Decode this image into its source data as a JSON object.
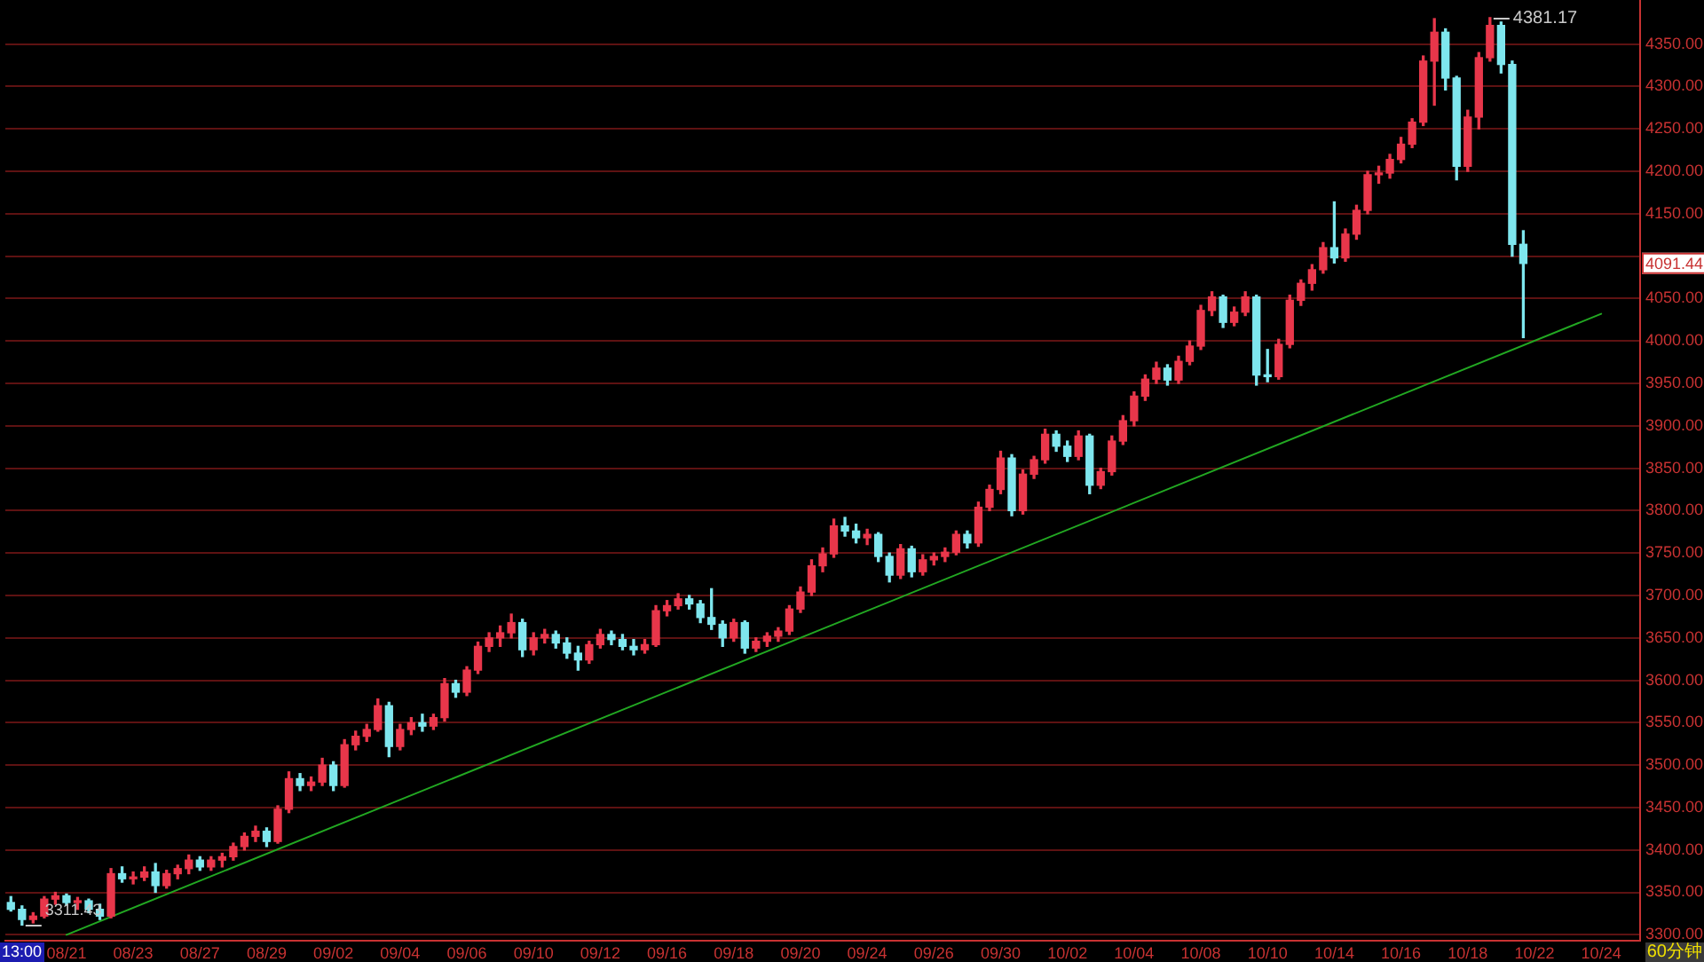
{
  "chart_data": {
    "type": "candlestick",
    "categories": [
      null,
      null,
      null,
      null,
      null,
      "08/21",
      null,
      null,
      null,
      null,
      null,
      "08/23",
      null,
      null,
      null,
      null,
      null,
      "08/27",
      null,
      null,
      null,
      null,
      null,
      "08/29",
      null,
      null,
      null,
      null,
      null,
      "09/02",
      null,
      null,
      null,
      null,
      null,
      "09/04",
      null,
      null,
      null,
      null,
      null,
      "09/06",
      null,
      null,
      null,
      null,
      null,
      "09/10",
      null,
      null,
      null,
      null,
      null,
      "09/12",
      null,
      null,
      null,
      null,
      null,
      "09/16",
      null,
      null,
      null,
      null,
      null,
      "09/18",
      null,
      null,
      null,
      null,
      null,
      "09/20",
      null,
      null,
      null,
      null,
      null,
      "09/24",
      null,
      null,
      null,
      null,
      null,
      "09/26",
      null,
      null,
      null,
      null,
      null,
      "09/30",
      null,
      null,
      null,
      null,
      null,
      "10/02",
      null,
      null,
      null,
      null,
      null,
      "10/04",
      null,
      null,
      null,
      null,
      null,
      "10/08",
      null,
      null,
      null,
      null,
      null,
      "10/10",
      null,
      null,
      null,
      null,
      null,
      "10/14",
      null,
      null,
      null,
      null,
      null,
      "10/16",
      null,
      null,
      null,
      null,
      null,
      "10/18",
      null,
      null,
      null,
      null,
      null,
      "10/22",
      null,
      null,
      null,
      null,
      null,
      "10/24",
      null,
      null,
      null
    ],
    "ohlc": [
      [
        3338,
        3345,
        3328,
        3330
      ],
      [
        3330,
        3334,
        3311.43,
        3318
      ],
      [
        3318,
        3326,
        3314,
        3322
      ],
      [
        3322,
        3345,
        3320,
        3342
      ],
      [
        3342,
        3350,
        3336,
        3346
      ],
      [
        3346,
        3348,
        3335,
        3338
      ],
      [
        3338,
        3344,
        3330,
        3340
      ],
      [
        3340,
        3342,
        3326,
        3330
      ],
      [
        3330,
        3336,
        3318,
        3322
      ],
      [
        3322,
        3378,
        3320,
        3372
      ],
      [
        3372,
        3380,
        3362,
        3366
      ],
      [
        3366,
        3374,
        3360,
        3368
      ],
      [
        3368,
        3380,
        3364,
        3374
      ],
      [
        3374,
        3384,
        3350,
        3358
      ],
      [
        3358,
        3376,
        3355,
        3372
      ],
      [
        3372,
        3382,
        3366,
        3378
      ],
      [
        3378,
        3394,
        3372,
        3388
      ],
      [
        3388,
        3392,
        3376,
        3380
      ],
      [
        3380,
        3392,
        3376,
        3388
      ],
      [
        3388,
        3396,
        3380,
        3392
      ],
      [
        3392,
        3408,
        3388,
        3404
      ],
      [
        3404,
        3420,
        3400,
        3416
      ],
      [
        3416,
        3428,
        3410,
        3422
      ],
      [
        3422,
        3426,
        3404,
        3410
      ],
      [
        3410,
        3452,
        3408,
        3448
      ],
      [
        3448,
        3492,
        3444,
        3484
      ],
      [
        3484,
        3490,
        3470,
        3476
      ],
      [
        3476,
        3486,
        3470,
        3480
      ],
      [
        3480,
        3508,
        3476,
        3500
      ],
      [
        3500,
        3504,
        3470,
        3476
      ],
      [
        3476,
        3530,
        3474,
        3524
      ],
      [
        3524,
        3540,
        3518,
        3534
      ],
      [
        3534,
        3548,
        3528,
        3542
      ],
      [
        3542,
        3578,
        3540,
        3570
      ],
      [
        3570,
        3574,
        3510,
        3522
      ],
      [
        3522,
        3548,
        3518,
        3542
      ],
      [
        3542,
        3556,
        3536,
        3550
      ],
      [
        3550,
        3560,
        3540,
        3546
      ],
      [
        3546,
        3560,
        3542,
        3556
      ],
      [
        3556,
        3602,
        3552,
        3596
      ],
      [
        3596,
        3600,
        3580,
        3586
      ],
      [
        3586,
        3616,
        3582,
        3612
      ],
      [
        3612,
        3645,
        3608,
        3640
      ],
      [
        3640,
        3656,
        3634,
        3650
      ],
      [
        3650,
        3664,
        3640,
        3656
      ],
      [
        3656,
        3678,
        3650,
        3668
      ],
      [
        3668,
        3672,
        3628,
        3636
      ],
      [
        3636,
        3656,
        3630,
        3650
      ],
      [
        3650,
        3660,
        3644,
        3654
      ],
      [
        3654,
        3658,
        3638,
        3644
      ],
      [
        3644,
        3650,
        3626,
        3632
      ],
      [
        3632,
        3640,
        3612,
        3624
      ],
      [
        3624,
        3646,
        3620,
        3642
      ],
      [
        3642,
        3660,
        3638,
        3654
      ],
      [
        3654,
        3658,
        3642,
        3648
      ],
      [
        3648,
        3654,
        3636,
        3640
      ],
      [
        3640,
        3648,
        3630,
        3636
      ],
      [
        3636,
        3648,
        3632,
        3642
      ],
      [
        3642,
        3688,
        3640,
        3682
      ],
      [
        3682,
        3694,
        3676,
        3688
      ],
      [
        3688,
        3702,
        3684,
        3696
      ],
      [
        3696,
        3700,
        3684,
        3690
      ],
      [
        3690,
        3694,
        3668,
        3674
      ],
      [
        3674,
        3708,
        3660,
        3666
      ],
      [
        3666,
        3670,
        3640,
        3650
      ],
      [
        3650,
        3672,
        3646,
        3668
      ],
      [
        3668,
        3670,
        3632,
        3638
      ],
      [
        3638,
        3650,
        3634,
        3646
      ],
      [
        3646,
        3656,
        3640,
        3652
      ],
      [
        3652,
        3662,
        3646,
        3658
      ],
      [
        3658,
        3688,
        3654,
        3684
      ],
      [
        3684,
        3710,
        3680,
        3704
      ],
      [
        3704,
        3742,
        3700,
        3735
      ],
      [
        3735,
        3756,
        3728,
        3749
      ],
      [
        3749,
        3790,
        3745,
        3782
      ],
      [
        3782,
        3792,
        3770,
        3776
      ],
      [
        3776,
        3784,
        3762,
        3768
      ],
      [
        3768,
        3778,
        3760,
        3772
      ],
      [
        3772,
        3774,
        3740,
        3746
      ],
      [
        3746,
        3750,
        3716,
        3724
      ],
      [
        3724,
        3760,
        3720,
        3755
      ],
      [
        3755,
        3758,
        3722,
        3728
      ],
      [
        3728,
        3748,
        3724,
        3742
      ],
      [
        3742,
        3750,
        3736,
        3746
      ],
      [
        3746,
        3756,
        3740,
        3751
      ],
      [
        3751,
        3776,
        3748,
        3772
      ],
      [
        3772,
        3776,
        3756,
        3762
      ],
      [
        3762,
        3810,
        3758,
        3804
      ],
      [
        3804,
        3830,
        3800,
        3825
      ],
      [
        3825,
        3870,
        3820,
        3862
      ],
      [
        3862,
        3866,
        3794,
        3800
      ],
      [
        3800,
        3848,
        3796,
        3843
      ],
      [
        3843,
        3864,
        3838,
        3860
      ],
      [
        3860,
        3896,
        3856,
        3890
      ],
      [
        3890,
        3894,
        3870,
        3876
      ],
      [
        3876,
        3882,
        3858,
        3864
      ],
      [
        3864,
        3894,
        3860,
        3888
      ],
      [
        3888,
        3890,
        3820,
        3830
      ],
      [
        3830,
        3850,
        3826,
        3846
      ],
      [
        3846,
        3888,
        3842,
        3882
      ],
      [
        3882,
        3912,
        3878,
        3906
      ],
      [
        3906,
        3940,
        3900,
        3935
      ],
      [
        3935,
        3960,
        3930,
        3955
      ],
      [
        3955,
        3975,
        3950,
        3968
      ],
      [
        3968,
        3972,
        3948,
        3954
      ],
      [
        3954,
        3982,
        3950,
        3976
      ],
      [
        3976,
        4000,
        3972,
        3994
      ],
      [
        3994,
        4042,
        3990,
        4036
      ],
      [
        4036,
        4058,
        4030,
        4052
      ],
      [
        4052,
        4054,
        4016,
        4022
      ],
      [
        4022,
        4040,
        4018,
        4034
      ],
      [
        4034,
        4058,
        4030,
        4052
      ],
      [
        4052,
        4054,
        3948,
        3960
      ],
      [
        3960,
        3990,
        3952,
        3958
      ],
      [
        3958,
        4002,
        3955,
        3996
      ],
      [
        3996,
        4054,
        3992,
        4048
      ],
      [
        4048,
        4072,
        4042,
        4068
      ],
      [
        4068,
        4090,
        4060,
        4084
      ],
      [
        4084,
        4116,
        4080,
        4110
      ],
      [
        4110,
        4164,
        4092,
        4098
      ],
      [
        4098,
        4132,
        4094,
        4126
      ],
      [
        4126,
        4160,
        4120,
        4154
      ],
      [
        4154,
        4200,
        4150,
        4196
      ],
      [
        4196,
        4206,
        4186,
        4198
      ],
      [
        4198,
        4220,
        4192,
        4214
      ],
      [
        4214,
        4240,
        4210,
        4232
      ],
      [
        4232,
        4262,
        4228,
        4258
      ],
      [
        4258,
        4336,
        4254,
        4330
      ],
      [
        4330,
        4380,
        4278,
        4364
      ],
      [
        4364,
        4368,
        4296,
        4310
      ],
      [
        4310,
        4312,
        4190,
        4206
      ],
      [
        4206,
        4272,
        4200,
        4264
      ],
      [
        4264,
        4340,
        4250,
        4334
      ],
      [
        4334,
        4381.17,
        4330,
        4372
      ],
      [
        4372,
        4376,
        4316,
        4326
      ],
      [
        4326,
        4330,
        4100,
        4114
      ],
      [
        4114,
        4130,
        4004,
        4091.44
      ],
      null,
      null,
      null,
      null,
      null,
      null,
      null,
      null,
      null,
      null
    ],
    "colors": [
      "#7ee6ee",
      "#7ee6ee",
      "#e8364a",
      "#e8364a",
      "#e8364a",
      "#7ee6ee",
      "#e8364a",
      "#7ee6ee",
      "#7ee6ee",
      "#e8364a",
      "#7ee6ee",
      "#e8364a",
      "#e8364a",
      "#7ee6ee",
      "#e8364a",
      "#e8364a",
      "#e8364a",
      "#7ee6ee",
      "#e8364a",
      "#e8364a",
      "#e8364a",
      "#e8364a",
      "#e8364a",
      "#7ee6ee",
      "#e8364a",
      "#e8364a",
      "#7ee6ee",
      "#e8364a",
      "#e8364a",
      "#7ee6ee",
      "#e8364a",
      "#e8364a",
      "#e8364a",
      "#e8364a",
      "#7ee6ee",
      "#e8364a",
      "#e8364a",
      "#7ee6ee",
      "#e8364a",
      "#e8364a",
      "#7ee6ee",
      "#e8364a",
      "#e8364a",
      "#e8364a",
      "#e8364a",
      "#e8364a",
      "#7ee6ee",
      "#e8364a",
      "#e8364a",
      "#7ee6ee",
      "#7ee6ee",
      "#7ee6ee",
      "#e8364a",
      "#e8364a",
      "#7ee6ee",
      "#7ee6ee",
      "#7ee6ee",
      "#e8364a",
      "#e8364a",
      "#e8364a",
      "#e8364a",
      "#7ee6ee",
      "#7ee6ee",
      "#7ee6ee",
      "#7ee6ee",
      "#e8364a",
      "#7ee6ee",
      "#e8364a",
      "#e8364a",
      "#e8364a",
      "#e8364a",
      "#e8364a",
      "#e8364a",
      "#e8364a",
      "#e8364a",
      "#7ee6ee",
      "#7ee6ee",
      "#e8364a",
      "#7ee6ee",
      "#7ee6ee",
      "#e8364a",
      "#7ee6ee",
      "#e8364a",
      "#e8364a",
      "#e8364a",
      "#e8364a",
      "#7ee6ee",
      "#e8364a",
      "#e8364a",
      "#e8364a",
      "#7ee6ee",
      "#e8364a",
      "#e8364a",
      "#e8364a",
      "#7ee6ee",
      "#7ee6ee",
      "#e8364a",
      "#7ee6ee",
      "#e8364a",
      "#e8364a",
      "#e8364a",
      "#e8364a",
      "#e8364a",
      "#e8364a",
      "#7ee6ee",
      "#e8364a",
      "#e8364a",
      "#e8364a",
      "#e8364a",
      "#7ee6ee",
      "#e8364a",
      "#e8364a",
      "#7ee6ee",
      "#7ee6ee",
      "#e8364a",
      "#e8364a",
      "#e8364a",
      "#e8364a",
      "#e8364a",
      "#7ee6ee",
      "#e8364a",
      "#e8364a",
      "#e8364a",
      "#e8364a",
      "#e8364a",
      "#e8364a",
      "#e8364a",
      "#e8364a",
      "#e8364a",
      "#7ee6ee",
      "#7ee6ee",
      "#e8364a",
      "#e8364a",
      "#e8364a",
      "#7ee6ee",
      "#7ee6ee",
      "#7ee6ee",
      null,
      null,
      null,
      null,
      null,
      null,
      null,
      null,
      null,
      null
    ],
    "series": [
      {
        "type": "line",
        "x": [
          "08/21",
          "10/24"
        ],
        "values": [
          3300,
          4032
        ],
        "color": "#22a822"
      }
    ],
    "ylim": [
      3293,
      4402
    ],
    "yticks": [
      {
        "value": 3300,
        "label": "3300.00"
      },
      {
        "value": 3350,
        "label": "3350.00"
      },
      {
        "value": 3400,
        "label": "3400.00"
      },
      {
        "value": 3450,
        "label": "3450.00"
      },
      {
        "value": 3500,
        "label": "3500.00"
      },
      {
        "value": 3550,
        "label": "3550.00"
      },
      {
        "value": 3600,
        "label": "3600.00"
      },
      {
        "value": 3650,
        "label": "3650.00"
      },
      {
        "value": 3700,
        "label": "3700.00"
      },
      {
        "value": 3750,
        "label": "3750.00"
      },
      {
        "value": 3800,
        "label": "3800.00"
      },
      {
        "value": 3850,
        "label": "3850.00"
      },
      {
        "value": 3900,
        "label": "3900.00"
      },
      {
        "value": 3950,
        "label": "3950.00"
      },
      {
        "value": 4000,
        "label": "4000.00"
      },
      {
        "value": 4050,
        "label": "4050.00"
      },
      {
        "value": 4100,
        "label": null
      },
      {
        "value": 4150,
        "label": "4150.00"
      },
      {
        "value": 4200,
        "label": "4200.00"
      },
      {
        "value": 4250,
        "label": "4250.00"
      },
      {
        "value": 4300,
        "label": "4300.00"
      },
      {
        "value": 4350,
        "label": "4350.00"
      }
    ],
    "grid": "y",
    "annotations": [
      "4381.17",
      "3311.43",
      {
        "text": "4091.44",
        "y": 4091.44
      },
      "13:00",
      "60分钟"
    ]
  }
}
